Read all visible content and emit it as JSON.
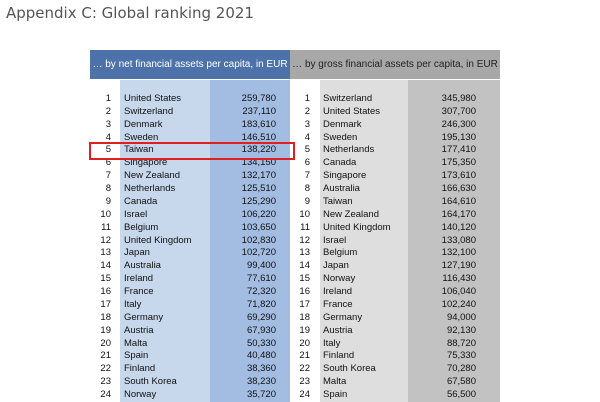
{
  "header": {
    "title": "Appendix C: Global ranking 2021"
  },
  "table": {
    "columns": [
      "… by net financial assets per capita, in EUR",
      "… by gross financial assets per capita, in EUR"
    ],
    "left_rows": [
      [
        1,
        "United States",
        "259,780"
      ],
      [
        2,
        "Switzerland",
        "237,110"
      ],
      [
        3,
        "Denmark",
        "183,610"
      ],
      [
        4,
        "Sweden",
        "146,510"
      ],
      [
        5,
        "Taiwan",
        "138,220"
      ],
      [
        6,
        "Singapore",
        "134,150"
      ],
      [
        7,
        "New Zealand",
        "132,170"
      ],
      [
        8,
        "Netherlands",
        "125,510"
      ],
      [
        9,
        "Canada",
        "125,290"
      ],
      [
        10,
        "Israel",
        "106,220"
      ],
      [
        11,
        "Belgium",
        "103,650"
      ],
      [
        12,
        "United Kingdom",
        "102,830"
      ],
      [
        13,
        "Japan",
        "102,720"
      ],
      [
        14,
        "Australia",
        "99,400"
      ],
      [
        15,
        "Ireland",
        "77,610"
      ],
      [
        16,
        "France",
        "72,320"
      ],
      [
        17,
        "Italy",
        "71,820"
      ],
      [
        18,
        "Germany",
        "69,290"
      ],
      [
        19,
        "Austria",
        "67,930"
      ],
      [
        20,
        "Malta",
        "50,330"
      ],
      [
        21,
        "Spain",
        "40,480"
      ],
      [
        22,
        "Finland",
        "38,360"
      ],
      [
        23,
        "South Korea",
        "38,230"
      ],
      [
        24,
        "Norway",
        "35,720"
      ]
    ],
    "right_rows": [
      [
        1,
        "Switzerland",
        "345,980"
      ],
      [
        2,
        "United States",
        "307,700"
      ],
      [
        3,
        "Denmark",
        "246,300"
      ],
      [
        4,
        "Sweden",
        "195,130"
      ],
      [
        5,
        "Netherlands",
        "177,410"
      ],
      [
        6,
        "Canada",
        "175,350"
      ],
      [
        7,
        "Singapore",
        "173,610"
      ],
      [
        8,
        "Australia",
        "166,630"
      ],
      [
        9,
        "Taiwan",
        "164,610"
      ],
      [
        10,
        "New Zealand",
        "164,170"
      ],
      [
        11,
        "United Kingdom",
        "140,120"
      ],
      [
        12,
        "Israel",
        "133,080"
      ],
      [
        13,
        "Belgium",
        "132,100"
      ],
      [
        14,
        "Japan",
        "127,190"
      ],
      [
        15,
        "Norway",
        "116,430"
      ],
      [
        16,
        "Ireland",
        "106,040"
      ],
      [
        17,
        "France",
        "102,240"
      ],
      [
        18,
        "Germany",
        "94,000"
      ],
      [
        19,
        "Austria",
        "92,130"
      ],
      [
        20,
        "Italy",
        "88,720"
      ],
      [
        21,
        "Finland",
        "75,330"
      ],
      [
        22,
        "South Korea",
        "70,280"
      ],
      [
        23,
        "Malta",
        "67,580"
      ],
      [
        24,
        "Spain",
        "56,500"
      ]
    ]
  }
}
